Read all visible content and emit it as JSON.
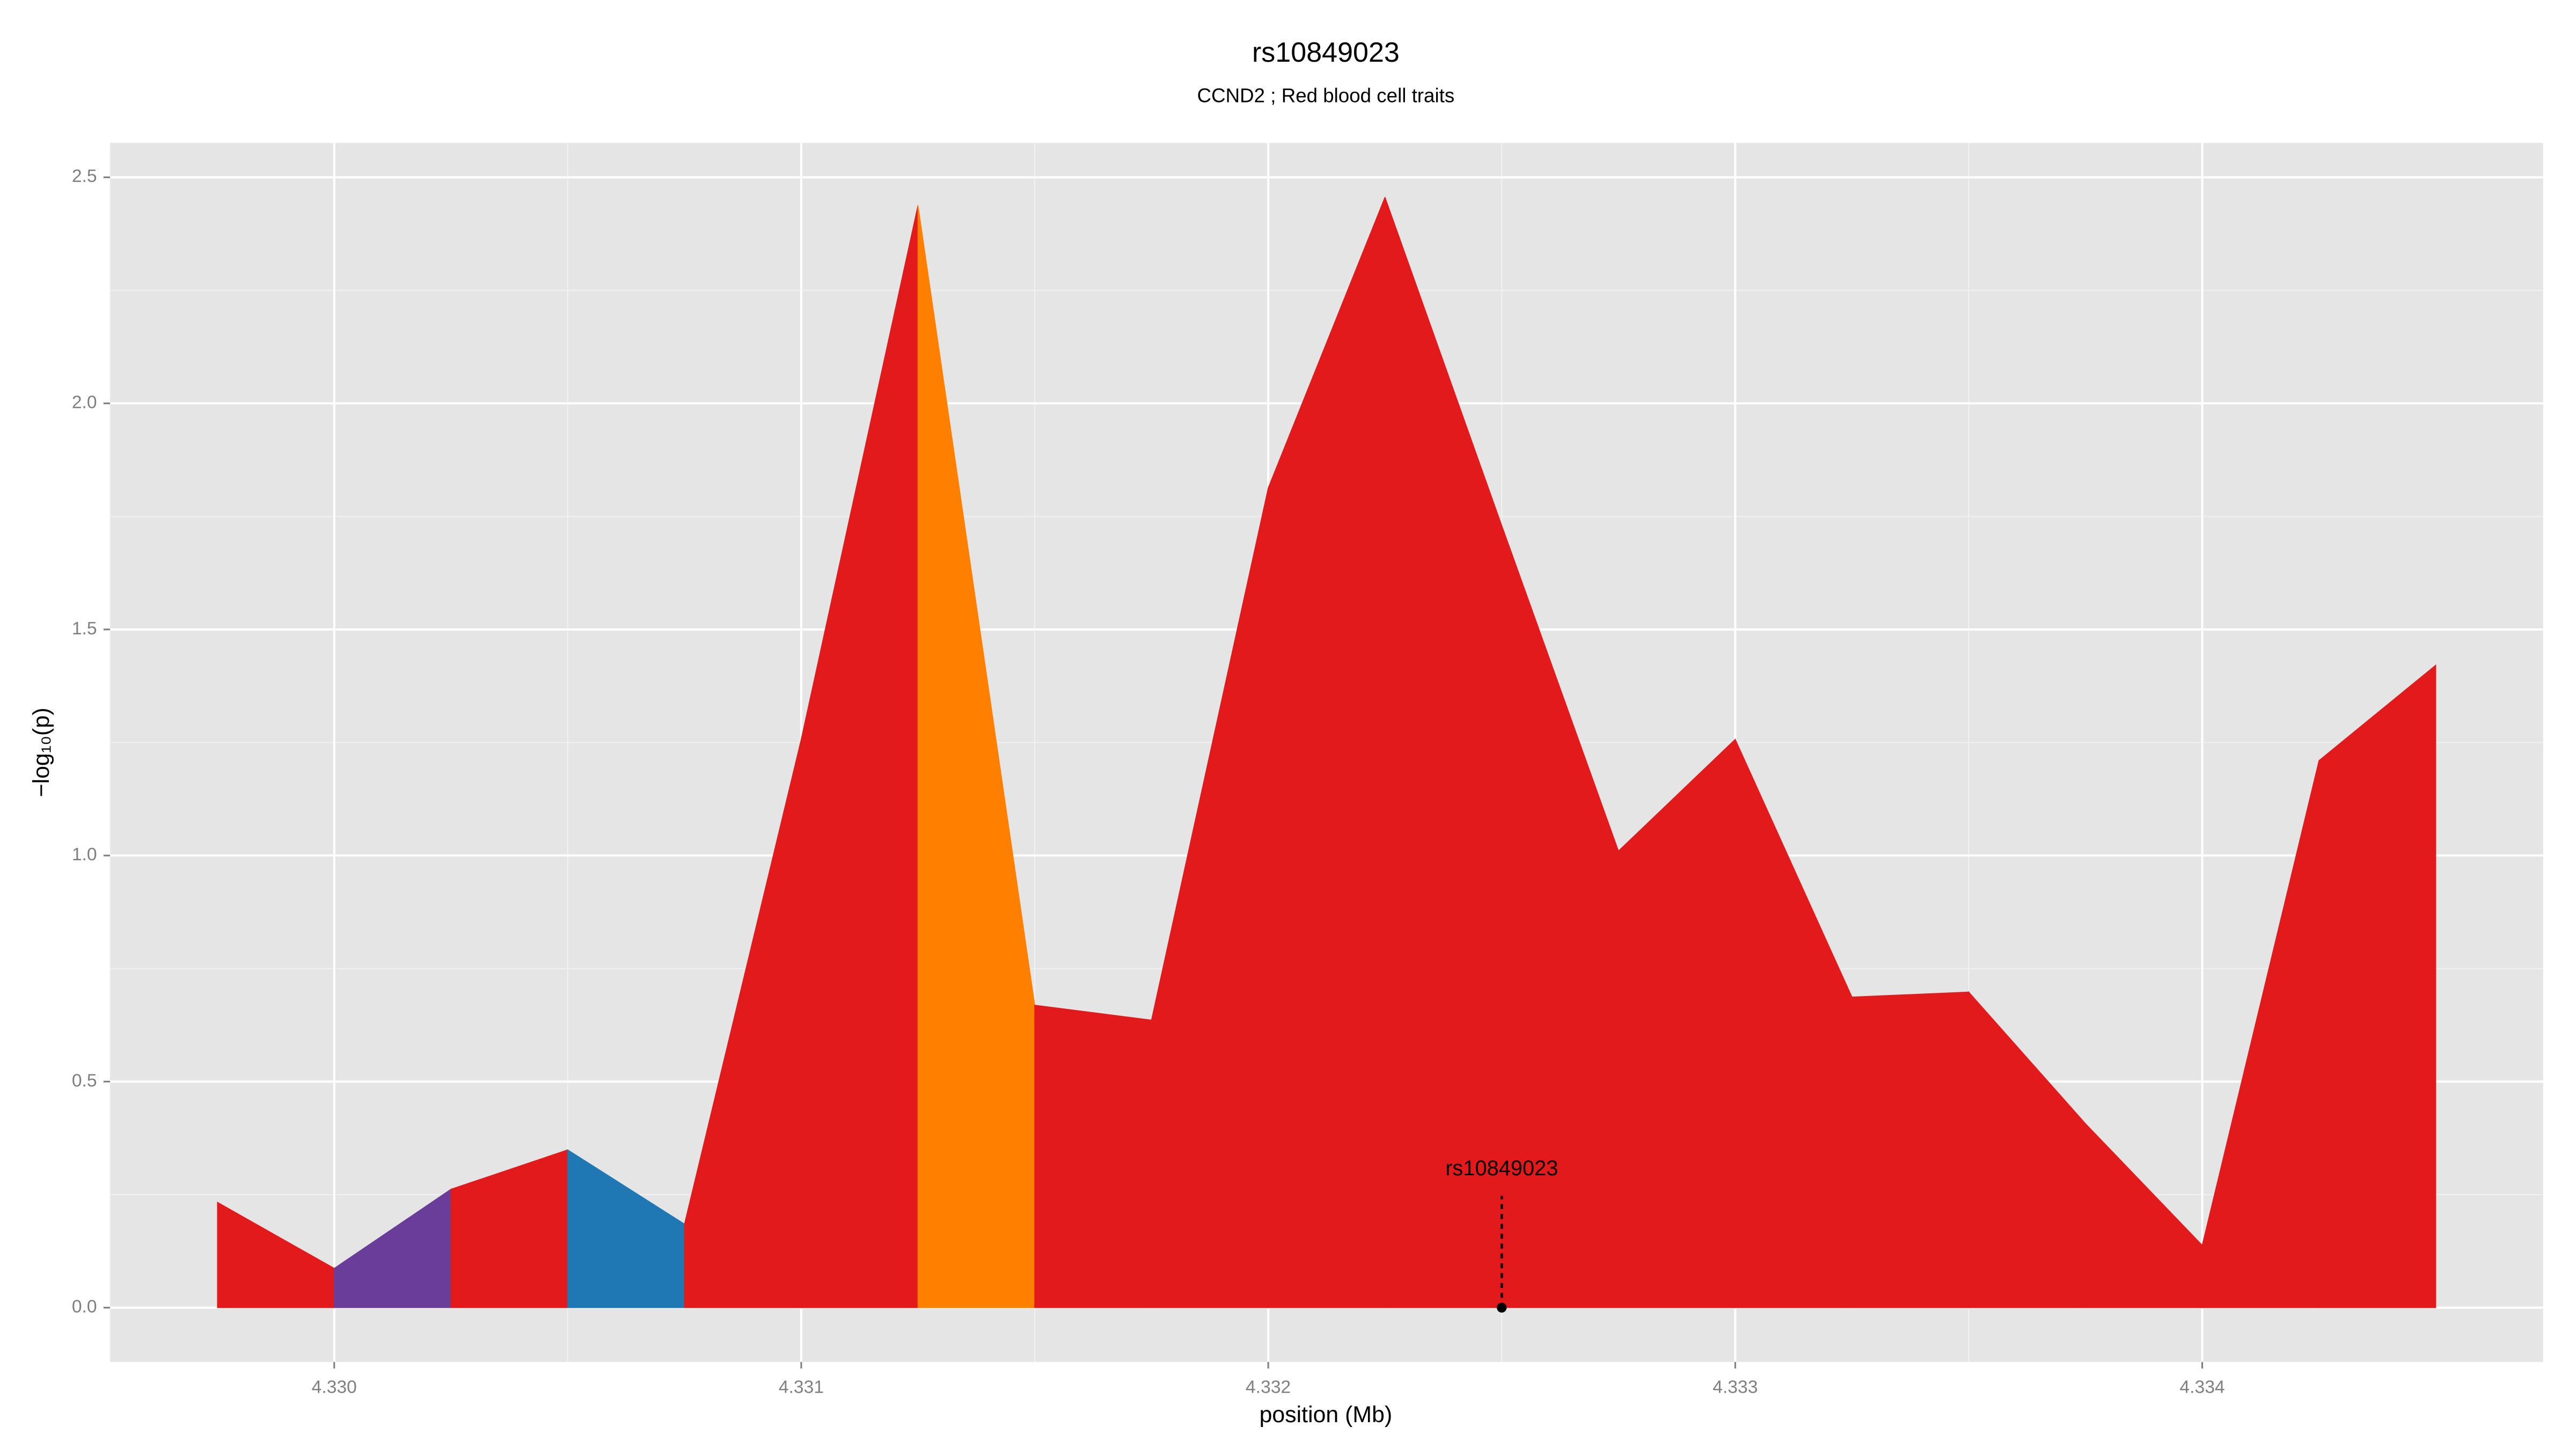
{
  "chart_data": {
    "type": "area",
    "title": "rs10849023",
    "subtitle": "CCND2 ; Red blood cell traits",
    "xlabel": "position (Mb)",
    "ylabel": "−log₁₀(p)",
    "x": [
      4.32975,
      4.33,
      4.33025,
      4.3305,
      4.33075,
      4.331,
      4.33125,
      4.3315,
      4.33175,
      4.332,
      4.33225,
      4.3325,
      4.33275,
      4.333,
      4.33325,
      4.3335,
      4.33375,
      4.334,
      4.33425,
      4.3345
    ],
    "values": [
      0.233,
      0.087,
      0.262,
      0.349,
      0.185,
      1.257,
      2.438,
      0.669,
      0.636,
      1.813,
      2.456,
      1.73,
      1.01,
      1.257,
      0.687,
      0.698,
      0.407,
      0.138,
      1.21,
      1.421
    ],
    "segment_colors": [
      "#e31a1c",
      "#6a3d9a",
      "#e31a1c",
      "#1f78b4",
      "#e31a1c",
      "#e31a1c",
      "#ff7f00",
      "#e31a1c",
      "#e31a1c",
      "#e31a1c",
      "#e31a1c",
      "#e31a1c",
      "#e31a1c",
      "#e31a1c",
      "#e31a1c",
      "#e31a1c",
      "#e31a1c",
      "#e31a1c",
      "#e31a1c"
    ],
    "annotation": {
      "text": "rs10849023",
      "x": 4.3325,
      "y": 0
    },
    "xlim": [
      4.32952,
      4.33473
    ],
    "ylim": [
      -0.12,
      2.576
    ],
    "xticks": [
      {
        "value": 4.33,
        "label": "4.330"
      },
      4.331,
      4.332,
      4.333,
      4.334
    ],
    "yticks": [
      {
        "value": 0,
        "label": "0.0"
      },
      0.5,
      {
        "value": 1,
        "label": "1.0"
      },
      1.5,
      {
        "value": 2,
        "label": "2.0"
      },
      2.5
    ],
    "grid": true
  }
}
